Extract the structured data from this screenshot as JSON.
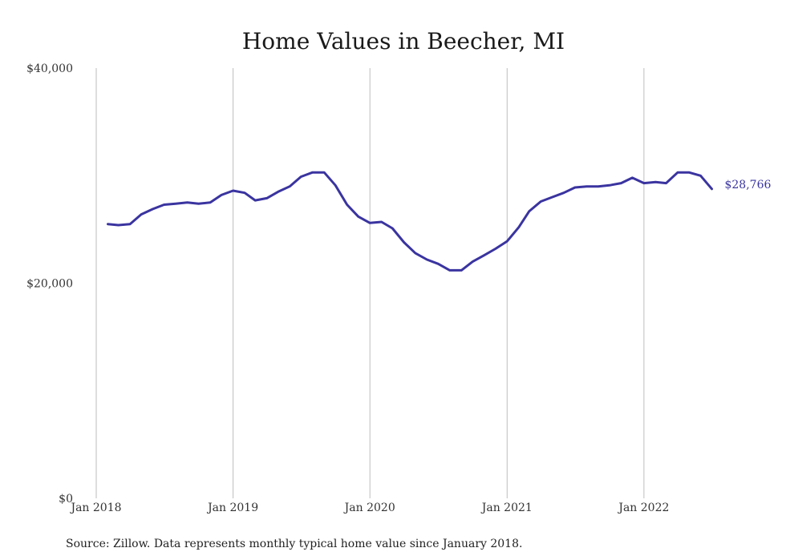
{
  "chart_data": {
    "type": "line",
    "title": "Home Values in Beecher, MI",
    "xlabel": "",
    "ylabel": "",
    "ylim": [
      0,
      40000
    ],
    "xlim": [
      "2018-01-01",
      "2022-12-01"
    ],
    "grid": "vertical",
    "y_ticks": [
      "$0",
      "$20,000",
      "$40,000"
    ],
    "x_ticks": [
      "Jan 2018",
      "Jan 2019",
      "Jan 2020",
      "Jan 2021",
      "Jan 2022"
    ],
    "series": [
      {
        "color": "#3a34a0",
        "x": [
          "2018-02-01",
          "2018-03-01",
          "2018-04-01",
          "2018-05-01",
          "2018-06-01",
          "2018-07-01",
          "2018-08-01",
          "2018-09-01",
          "2018-10-01",
          "2018-11-01",
          "2018-12-01",
          "2019-01-01",
          "2019-02-01",
          "2019-03-01",
          "2019-04-01",
          "2019-05-01",
          "2019-06-01",
          "2019-07-01",
          "2019-08-01",
          "2019-09-01",
          "2019-10-01",
          "2019-11-01",
          "2019-12-01",
          "2020-01-01",
          "2020-02-01",
          "2020-03-01",
          "2020-04-01",
          "2020-05-01",
          "2020-06-01",
          "2020-07-01",
          "2020-08-01",
          "2020-09-01",
          "2020-10-01",
          "2020-11-01",
          "2020-12-01",
          "2021-01-01",
          "2021-02-01",
          "2021-03-01",
          "2021-04-01",
          "2021-05-01",
          "2021-06-01",
          "2021-07-01",
          "2021-08-01",
          "2021-09-01",
          "2021-10-01",
          "2021-11-01",
          "2021-12-01",
          "2022-01-01",
          "2022-02-01",
          "2022-03-01",
          "2022-04-01",
          "2022-05-01",
          "2022-06-01",
          "2022-07-01"
        ],
        "values": [
          25500,
          25400,
          25500,
          26400,
          26900,
          27300,
          27400,
          27500,
          27400,
          27500,
          28200,
          28600,
          28400,
          27700,
          27900,
          28500,
          29000,
          29900,
          30300,
          30300,
          29100,
          27300,
          26200,
          25600,
          25700,
          25100,
          23800,
          22800,
          22200,
          21800,
          21200,
          21200,
          22000,
          22600,
          23200,
          23900,
          25200,
          26700,
          27600,
          28000,
          28400,
          28900,
          29000,
          29000,
          29100,
          29300,
          29800,
          29300,
          29400,
          29300,
          30300,
          30300,
          30000,
          28766
        ]
      }
    ],
    "end_label": "$28,766",
    "end_label_color": "#3a34a0",
    "source": "Source: Zillow. Data represents monthly typical home value since January 2018."
  }
}
